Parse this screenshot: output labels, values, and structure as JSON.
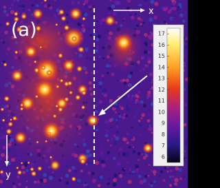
{
  "panel_label": "(a)",
  "x_axis_label": "x",
  "y_axis_label": "y",
  "colorbar": {
    "ticks": [
      6,
      7,
      8,
      9,
      10,
      11,
      12,
      13,
      14,
      15,
      16,
      17
    ],
    "clim": [
      5.5,
      17.5
    ]
  }
}
